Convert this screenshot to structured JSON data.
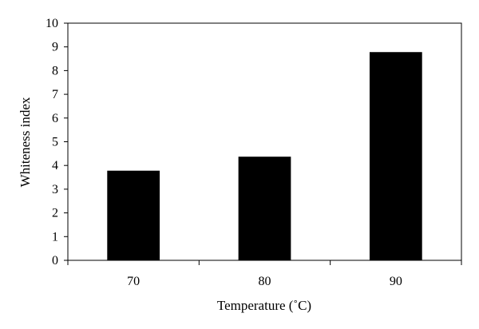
{
  "chart_data": {
    "type": "bar",
    "categories": [
      "70",
      "80",
      "90"
    ],
    "values": [
      3.78,
      4.37,
      8.78
    ],
    "xlabel": "Temperature (˚C)",
    "ylabel": "Whiteness index",
    "ylim": [
      0,
      10
    ],
    "yticks": [
      "0",
      "1",
      "2",
      "3",
      "4",
      "5",
      "6",
      "7",
      "8",
      "9",
      "10"
    ],
    "bar_color": "#000000",
    "grid": false
  }
}
